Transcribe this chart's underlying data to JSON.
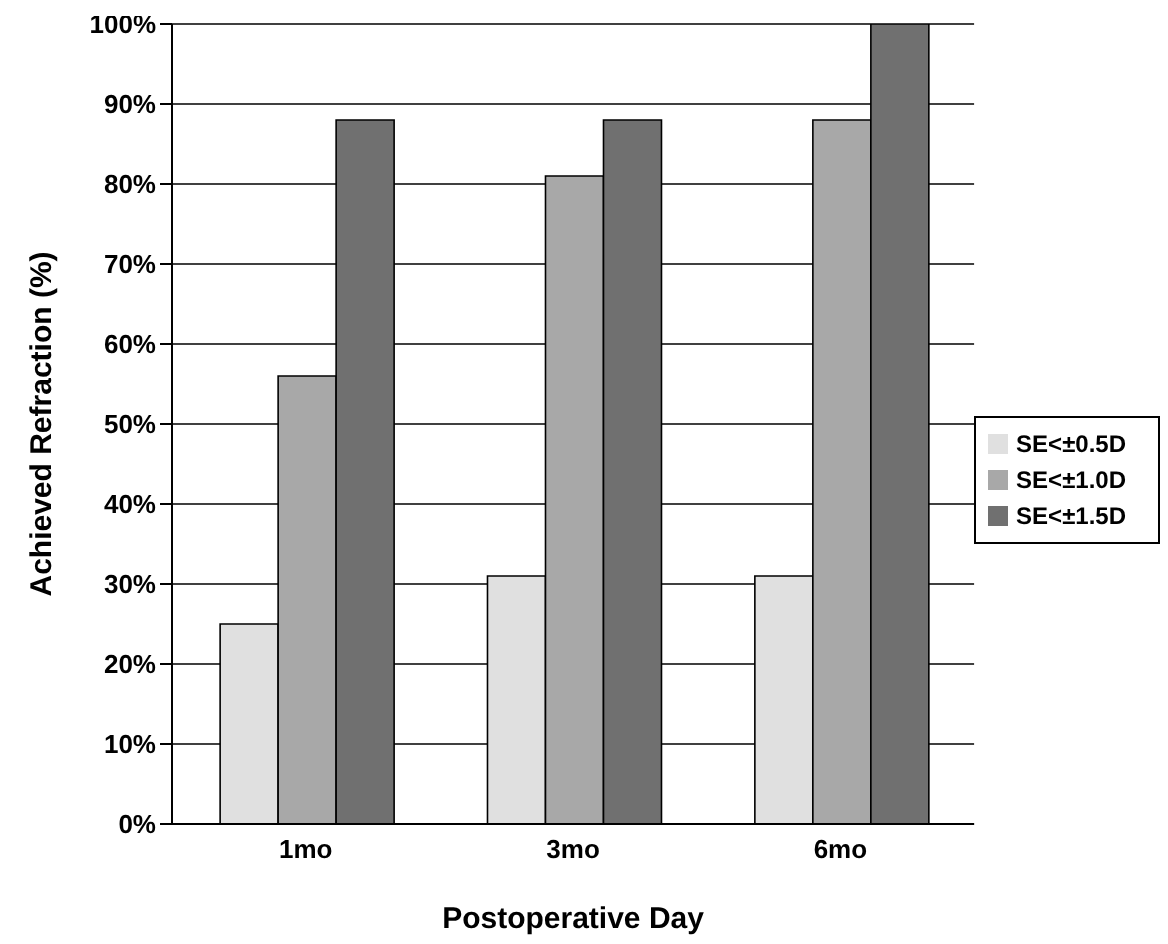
{
  "chart_data": {
    "type": "bar",
    "xlabel": "Postoperative Day",
    "ylabel": "Achieved Refraction (%)",
    "categories": [
      "1mo",
      "3mo",
      "6mo"
    ],
    "series": [
      {
        "name": "SE<±0.5D",
        "color": "#e0e0e0",
        "values": [
          25,
          31,
          31
        ]
      },
      {
        "name": "SE<±1.0D",
        "color": "#a8a8a8",
        "values": [
          56,
          81,
          88
        ]
      },
      {
        "name": "SE<±1.5D",
        "color": "#707070",
        "values": [
          88,
          88,
          100
        ]
      }
    ],
    "ylim": [
      0,
      100
    ],
    "yticks": [
      {
        "value": 0,
        "label": "0%"
      },
      {
        "value": 10,
        "label": "10%"
      },
      {
        "value": 20,
        "label": "20%"
      },
      {
        "value": 30,
        "label": "30%"
      },
      {
        "value": 40,
        "label": "40%"
      },
      {
        "value": 50,
        "label": "50%"
      },
      {
        "value": 60,
        "label": "60%"
      },
      {
        "value": 70,
        "label": "70%"
      },
      {
        "value": 80,
        "label": "80%"
      },
      {
        "value": 90,
        "label": "90%"
      },
      {
        "value": 100,
        "label": "100%"
      }
    ],
    "grid": "y",
    "legend": "right"
  }
}
